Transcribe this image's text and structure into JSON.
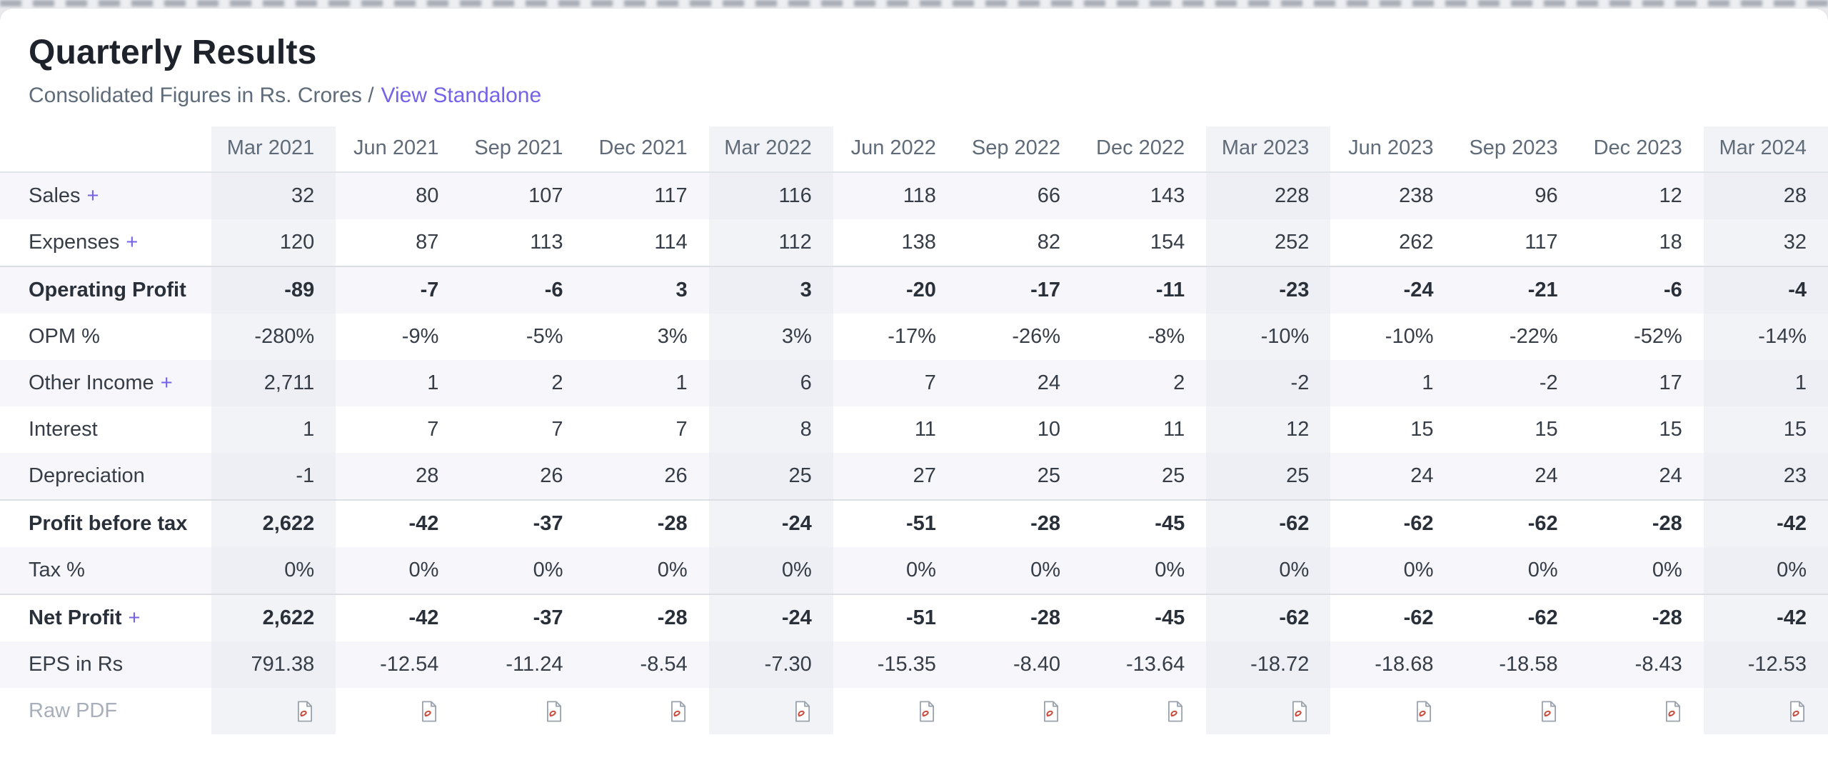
{
  "header": {
    "title": "Quarterly Results",
    "subtitle_text": "Consolidated Figures in Rs. Crores /",
    "link_label": "View Standalone"
  },
  "colors": {
    "accent_purple": "#7463e8",
    "stripe_row": "#f6f6fb",
    "highlight_column": "#eef0f6",
    "pdf_icon_red": "#c74a3b",
    "pdf_icon_gray": "#9aa3ad"
  },
  "table": {
    "columns": [
      "Mar 2021",
      "Jun 2021",
      "Sep 2021",
      "Dec 2021",
      "Mar 2022",
      "Jun 2022",
      "Sep 2022",
      "Dec 2022",
      "Mar 2023",
      "Jun 2023",
      "Sep 2023",
      "Dec 2023",
      "Mar 2024"
    ],
    "highlighted_columns": [
      "Mar 2021",
      "Mar 2022",
      "Mar 2023",
      "Mar 2024"
    ],
    "rows": [
      {
        "label": "Sales",
        "expand": "+",
        "bold": false,
        "values": [
          "32",
          "80",
          "107",
          "117",
          "116",
          "118",
          "66",
          "143",
          "228",
          "238",
          "96",
          "12",
          "28"
        ]
      },
      {
        "label": "Expenses",
        "expand": "+",
        "bold": false,
        "values": [
          "120",
          "87",
          "113",
          "114",
          "112",
          "138",
          "82",
          "154",
          "252",
          "262",
          "117",
          "18",
          "32"
        ]
      },
      {
        "label": "Operating Profit",
        "bold": true,
        "values": [
          "-89",
          "-7",
          "-6",
          "3",
          "3",
          "-20",
          "-17",
          "-11",
          "-23",
          "-24",
          "-21",
          "-6",
          "-4"
        ]
      },
      {
        "label": "OPM %",
        "bold": false,
        "values": [
          "-280%",
          "-9%",
          "-5%",
          "3%",
          "3%",
          "-17%",
          "-26%",
          "-8%",
          "-10%",
          "-10%",
          "-22%",
          "-52%",
          "-14%"
        ]
      },
      {
        "label": "Other Income",
        "expand": "+",
        "bold": false,
        "values": [
          "2,711",
          "1",
          "2",
          "1",
          "6",
          "7",
          "24",
          "2",
          "-2",
          "1",
          "-2",
          "17",
          "1"
        ]
      },
      {
        "label": "Interest",
        "bold": false,
        "values": [
          "1",
          "7",
          "7",
          "7",
          "8",
          "11",
          "10",
          "11",
          "12",
          "15",
          "15",
          "15",
          "15"
        ]
      },
      {
        "label": "Depreciation",
        "bold": false,
        "values": [
          "-1",
          "28",
          "26",
          "26",
          "25",
          "27",
          "25",
          "25",
          "25",
          "24",
          "24",
          "24",
          "23"
        ]
      },
      {
        "label": "Profit before tax",
        "bold": true,
        "values": [
          "2,622",
          "-42",
          "-37",
          "-28",
          "-24",
          "-51",
          "-28",
          "-45",
          "-62",
          "-62",
          "-62",
          "-28",
          "-42"
        ]
      },
      {
        "label": "Tax %",
        "bold": false,
        "values": [
          "0%",
          "0%",
          "0%",
          "0%",
          "0%",
          "0%",
          "0%",
          "0%",
          "0%",
          "0%",
          "0%",
          "0%",
          "0%"
        ]
      },
      {
        "label": "Net Profit",
        "expand": "+",
        "bold": true,
        "values": [
          "2,622",
          "-42",
          "-37",
          "-28",
          "-24",
          "-51",
          "-28",
          "-45",
          "-62",
          "-62",
          "-62",
          "-28",
          "-42"
        ]
      },
      {
        "label": "EPS in Rs",
        "bold": false,
        "values": [
          "791.38",
          "-12.54",
          "-11.24",
          "-8.54",
          "-7.30",
          "-15.35",
          "-8.40",
          "-13.64",
          "-18.72",
          "-18.68",
          "-18.58",
          "-8.43",
          "-12.53"
        ]
      },
      {
        "label": "Raw PDF",
        "bold": false,
        "pdf": true,
        "icon": "pdf-file-icon"
      }
    ]
  }
}
